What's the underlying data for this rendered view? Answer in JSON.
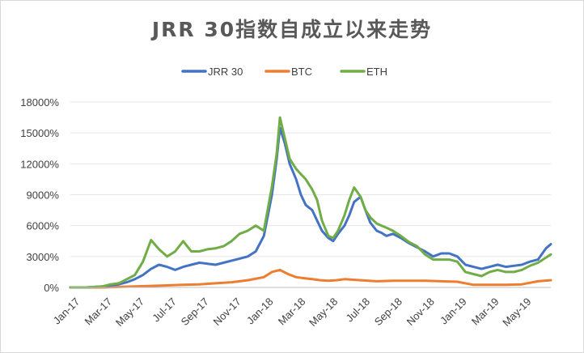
{
  "chart_data": {
    "type": "line",
    "title": "JRR 30指数自成立以来走势",
    "xlabel": "",
    "ylabel": "",
    "x_tick_labels": [
      "Jan-17",
      "Mar-17",
      "May-17",
      "Jul-17",
      "Sep-17",
      "Nov-17",
      "Jan-18",
      "Mar-18",
      "May-18",
      "Jul-18",
      "Sep-18",
      "Nov-18",
      "Jan-19",
      "Mar-19",
      "May-19"
    ],
    "y_tick_labels": [
      "0%",
      "3000%",
      "6000%",
      "9000%",
      "12000%",
      "15000%",
      "18000%"
    ],
    "ylim": [
      0,
      18000
    ],
    "xlim": [
      0,
      29.8
    ],
    "grid": true,
    "legend_position": "top",
    "series": [
      {
        "name": "JRR 30",
        "color": "#4472c4",
        "x": [
          0,
          1,
          2,
          2.5,
          3,
          3.5,
          4,
          4.5,
          5,
          5.5,
          6,
          6.5,
          7,
          7.5,
          8,
          8.5,
          9,
          9.5,
          10,
          10.5,
          11,
          11.5,
          12,
          12.5,
          12.8,
          13,
          13.3,
          13.6,
          14,
          14.3,
          14.6,
          15,
          15.3,
          15.6,
          16,
          16.3,
          16.6,
          17,
          17.3,
          17.6,
          18,
          18.3,
          18.6,
          19,
          19.3,
          19.6,
          20,
          20.5,
          21,
          21.5,
          22,
          22.5,
          23,
          23.5,
          24,
          24.5,
          25,
          25.5,
          26,
          26.5,
          27,
          27.5,
          28,
          28.5,
          29,
          29.5,
          29.8
        ],
        "y": [
          0,
          0,
          100,
          200,
          300,
          500,
          800,
          1200,
          1800,
          2200,
          2000,
          1700,
          2000,
          2200,
          2400,
          2300,
          2200,
          2400,
          2600,
          2800,
          3000,
          3500,
          5000,
          9000,
          12500,
          15500,
          14000,
          12000,
          10500,
          9000,
          8000,
          7500,
          6500,
          5500,
          4800,
          4500,
          5200,
          6000,
          7000,
          8300,
          8800,
          7500,
          6300,
          5500,
          5300,
          5000,
          5200,
          4800,
          4300,
          3900,
          3500,
          3000,
          3300,
          3300,
          3000,
          2200,
          2000,
          1800,
          2000,
          2200,
          2000,
          2100,
          2200,
          2500,
          2700,
          3800,
          4200
        ]
      },
      {
        "name": "BTC",
        "color": "#ed7d31",
        "x": [
          0,
          1,
          2,
          3,
          4,
          5,
          6,
          7,
          8,
          9,
          10,
          11,
          12,
          12.5,
          13,
          13.5,
          14,
          14.5,
          15,
          15.5,
          16,
          16.5,
          17,
          18,
          19,
          20,
          21,
          22,
          23,
          24,
          25,
          26,
          27,
          28,
          29,
          29.8
        ],
        "y": [
          0,
          0,
          0,
          50,
          100,
          150,
          200,
          250,
          300,
          400,
          500,
          700,
          1000,
          1500,
          1700,
          1300,
          1000,
          900,
          800,
          700,
          650,
          700,
          800,
          700,
          600,
          650,
          650,
          650,
          600,
          550,
          250,
          250,
          250,
          300,
          600,
          700
        ]
      },
      {
        "name": "ETH",
        "color": "#70ad47",
        "x": [
          0,
          1,
          2,
          2.5,
          3,
          3.5,
          4,
          4.5,
          5,
          5.5,
          6,
          6.5,
          7,
          7.5,
          8,
          8.5,
          9,
          9.5,
          10,
          10.5,
          11,
          11.5,
          12,
          12.5,
          12.8,
          13,
          13.3,
          13.6,
          14,
          14.3,
          14.6,
          15,
          15.3,
          15.6,
          16,
          16.3,
          16.6,
          17,
          17.3,
          17.6,
          18,
          18.3,
          18.6,
          19,
          19.3,
          19.6,
          20,
          20.5,
          21,
          21.5,
          22,
          22.5,
          23,
          23.5,
          24,
          24.5,
          25,
          25.5,
          26,
          26.5,
          27,
          27.5,
          28,
          28.5,
          29,
          29.5,
          29.8
        ],
        "y": [
          0,
          0,
          100,
          300,
          400,
          800,
          1200,
          2500,
          4600,
          3700,
          3000,
          3500,
          4500,
          3500,
          3500,
          3700,
          3800,
          4000,
          4500,
          5200,
          5500,
          6000,
          5500,
          9800,
          13000,
          16500,
          14500,
          12500,
          11500,
          11000,
          10500,
          9500,
          8500,
          6500,
          5000,
          4800,
          5500,
          7000,
          8500,
          9700,
          8800,
          7500,
          6800,
          6200,
          6000,
          5800,
          5500,
          5000,
          4400,
          4000,
          3200,
          2700,
          2700,
          2700,
          2500,
          1500,
          1300,
          1100,
          1500,
          1700,
          1500,
          1500,
          1700,
          2100,
          2400,
          2900,
          3200
        ]
      }
    ]
  }
}
